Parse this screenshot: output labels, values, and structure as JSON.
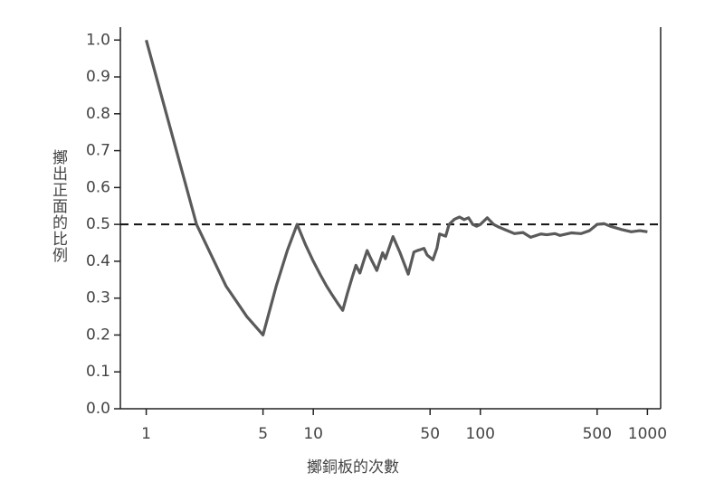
{
  "chart_data": {
    "type": "line",
    "x_label": "擲銅板的次數",
    "y_label": "擲出正面的比例",
    "x": [
      1,
      2,
      3,
      4,
      5,
      6,
      7,
      8,
      9,
      10,
      11,
      12,
      13,
      14,
      15,
      16,
      17,
      18,
      19,
      20,
      21,
      22,
      24,
      26,
      27,
      30,
      33,
      37,
      40,
      42,
      44,
      46,
      48,
      52,
      55,
      57,
      62,
      65,
      70,
      75,
      80,
      85,
      90,
      95,
      100,
      110,
      120,
      130,
      140,
      160,
      180,
      200,
      230,
      250,
      280,
      300,
      350,
      400,
      450,
      500,
      550,
      600,
      700,
      800,
      900,
      1000
    ],
    "values": [
      1.0,
      0.5,
      0.333,
      0.25,
      0.2,
      0.333,
      0.43,
      0.5,
      0.444,
      0.4,
      0.364,
      0.333,
      0.308,
      0.286,
      0.267,
      0.313,
      0.353,
      0.389,
      0.368,
      0.4,
      0.429,
      0.409,
      0.375,
      0.423,
      0.407,
      0.467,
      0.424,
      0.365,
      0.425,
      0.429,
      0.432,
      0.435,
      0.417,
      0.404,
      0.436,
      0.474,
      0.468,
      0.5,
      0.514,
      0.52,
      0.513,
      0.518,
      0.5,
      0.495,
      0.5,
      0.518,
      0.5,
      0.492,
      0.486,
      0.475,
      0.478,
      0.465,
      0.474,
      0.472,
      0.475,
      0.47,
      0.477,
      0.475,
      0.483,
      0.5,
      0.502,
      0.495,
      0.486,
      0.48,
      0.483,
      0.48
    ],
    "color": "#5a5a5a",
    "xlog": true,
    "xlim": [
      0.7,
      1200
    ],
    "xticks": [
      1,
      5,
      10,
      50,
      100,
      500,
      1000
    ],
    "ylim": [
      0,
      1.035
    ],
    "yticks": [
      {
        "value": 0,
        "label": "0.0"
      },
      0.1,
      0.2,
      0.3,
      0.4,
      0.5,
      0.6,
      0.7,
      0.8,
      0.9,
      {
        "value": 1,
        "label": "1.0"
      }
    ],
    "hline": 0.5
  }
}
